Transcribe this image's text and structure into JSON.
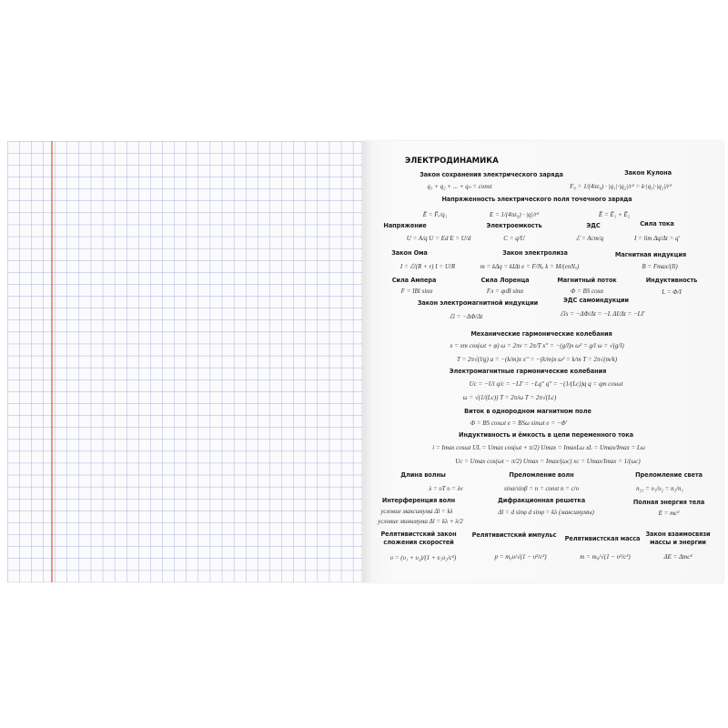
{
  "title": "ЭЛЕКТРОДИНАМИКА",
  "items": [
    {
      "heading": "Закон сохранения электрического заряда",
      "formulas": [
        "q₁ + q₂ + ... + qₙ = const"
      ]
    },
    {
      "heading": "Закон Кулона",
      "formulas": [
        "F₀ = 1/(4πε₀) · |q₁|·|q₂|/r² = k·|q₁|·|q₂|/r²"
      ]
    },
    {
      "heading": "Напряженность электрического поля точечного заряда",
      "formulas": [
        "Ē = F̄ₑ/q₁",
        "E = 1/(4πε₀) · |q|/r²",
        "Ē = Ē₁ + Ē₂"
      ]
    },
    {
      "heading": "Напряжение",
      "formulas": [
        "U = A/q   U = Ed   E = U/d"
      ]
    },
    {
      "heading": "Электроемкость",
      "formulas": [
        "C = q/U"
      ]
    },
    {
      "heading": "ЭДС",
      "formulas": [
        "ℰ = Aст/q"
      ]
    },
    {
      "heading": "Сила тока",
      "formulas": [
        "I = lim Δq/Δt = q′"
      ]
    },
    {
      "heading": "Закон Ома",
      "formulas": [
        "I = ℰ/(R + r)   I = U/R"
      ]
    },
    {
      "heading": "Закон электролиза",
      "formulas": [
        "m = kΔq = kIΔt   e = F/Nₐ   k = M/(enNₐ)"
      ]
    },
    {
      "heading": "Магнитная индукция",
      "formulas": [
        "B = Fmax/(Il)"
      ]
    },
    {
      "heading": "Сила Ампера",
      "formulas": [
        "F = IBl sinα"
      ]
    },
    {
      "heading": "Сила Лоренца",
      "formulas": [
        "Fл = qυB sinα"
      ]
    },
    {
      "heading": "Магнитный поток",
      "formulas": [
        "Φ = BS cosα"
      ]
    },
    {
      "heading": "Индуктивность",
      "formulas": [
        "L = Φ/I"
      ]
    },
    {
      "heading": "Закон электромагнитной индукции",
      "formulas": [
        "ℰi = −ΔΦ/Δt"
      ]
    },
    {
      "heading": "ЭДС самоиндукции",
      "formulas": [
        "ℰis = −ΔΦ/Δt = −L ΔI/Δt = −LI′"
      ]
    },
    {
      "heading": "Механические гармонические колебания",
      "formulas": [
        "x = xm cos(ωt + φ)   ω = 2πν = 2π/T   xʺ = −(g/l)x   ω² = g/l   ω = √(g/l)",
        "T = 2π√(l/g)   a = −(k/m)x   xʺ = −(k/m)x   ω² = k/m   T = 2π√(m/k)"
      ]
    },
    {
      "heading": "Электромагнитные гармонические колебания",
      "formulas": [
        "Uc = −Ui   q/c = −LI′ = −Lqʺ   qʺ = −(1/(Lc))q   q = qm cosωt",
        "ω = √(1/(Lc))   T = 2π/ω   T = 2π√(Lc)"
      ]
    },
    {
      "heading": "Виток в однородном магнитном поле",
      "formulas": [
        "Φ = BS cosωt   e = BSω sinωt   e = −Φ′"
      ]
    },
    {
      "heading": "Индуктивность и ёмкость в цепи переменного тока",
      "formulas": [
        "i = Imax cosωt   UL = Umax cos(ωt + π/2)   Umax = ImaxLω   xL = Umax/Imax = Lω",
        "Uc = Umax cos(ωt − π/2)   Umax = Imax/(ωc)   xc = Umax/Imax = 1/(ωc)"
      ]
    },
    {
      "heading": "Длина волны",
      "formulas": [
        "λ = υT   υ = λν"
      ]
    },
    {
      "heading": "Преломление волн",
      "formulas": [
        "sinα/sinβ = n = const   n = c/υ"
      ]
    },
    {
      "heading": "Преломление света",
      "formulas": [
        "n₂₁ = υ₁/υ₂ = n₂/n₁"
      ]
    },
    {
      "heading": "Интерференция волн",
      "formulas": [
        "условие максимума Δl = kλ",
        "условие минимума Δl = kλ + λ/2"
      ]
    },
    {
      "heading": "Дифракционная решетка",
      "formulas": [
        "Δl = d sinφ   d sinφ = kλ (максимумы)"
      ]
    },
    {
      "heading": "Полная энергия тела",
      "formulas": [
        "E = mc²"
      ]
    },
    {
      "heading": "Релятивистский закон сложения скоростей",
      "formulas": [
        "υ = (υ₁ + υ₂)/(1 + υ₁υ₂/c²)"
      ]
    },
    {
      "heading": "Релятивистский импульс",
      "formulas": [
        "p = m₀υ/√(1 − υ²/c²)"
      ]
    },
    {
      "heading": "Релятивистская масса",
      "formulas": [
        "m = m₀/√(1 − υ²/c²)"
      ]
    },
    {
      "heading": "Закон взаимосвязи массы и энергии",
      "formulas": [
        "ΔE = Δmc²"
      ]
    }
  ]
}
